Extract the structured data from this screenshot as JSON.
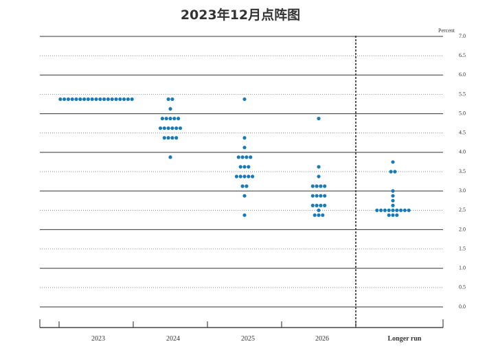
{
  "chart_data": {
    "type": "dot",
    "title": "2023年12月点阵图",
    "y_axis_label": "Percent",
    "categories": [
      "2023",
      "2024",
      "2025",
      "2026",
      "Longer run"
    ],
    "values": [
      [
        5.375,
        5.375,
        5.375,
        5.375,
        5.375,
        5.375,
        5.375,
        5.375,
        5.375,
        5.375,
        5.375,
        5.375,
        5.375,
        5.375,
        5.375,
        5.375,
        5.375,
        5.375,
        5.375
      ],
      [
        5.375,
        5.375,
        5.125,
        4.875,
        4.875,
        4.875,
        4.875,
        4.875,
        4.625,
        4.625,
        4.625,
        4.625,
        4.625,
        4.625,
        4.375,
        4.375,
        4.375,
        4.375,
        3.875
      ],
      [
        5.375,
        4.375,
        4.125,
        3.875,
        3.875,
        3.875,
        3.875,
        3.625,
        3.625,
        3.625,
        3.375,
        3.375,
        3.375,
        3.375,
        3.375,
        3.125,
        3.125,
        2.875,
        2.375
      ],
      [
        4.875,
        3.625,
        3.375,
        3.125,
        3.125,
        3.125,
        3.125,
        2.875,
        2.875,
        2.875,
        2.875,
        2.625,
        2.625,
        2.625,
        2.625,
        2.5,
        2.375,
        2.375,
        2.375
      ],
      [
        3.75,
        3.5,
        3.5,
        3.0,
        2.875,
        2.75,
        2.625,
        2.5,
        2.5,
        2.5,
        2.5,
        2.5,
        2.5,
        2.5,
        2.5,
        2.5,
        2.375,
        2.375,
        2.375
      ]
    ],
    "color": "#1a7ab5",
    "ylim": [
      0,
      7
    ],
    "yticks": [
      {
        "value": 0,
        "label": "0.0"
      },
      {
        "value": 0.5,
        "label": "0.5"
      },
      {
        "value": 1,
        "label": "1.0"
      },
      {
        "value": 1.5,
        "label": "1.5"
      },
      {
        "value": 2,
        "label": "2.0"
      },
      {
        "value": 2.5,
        "label": "2.5"
      },
      {
        "value": 3,
        "label": "3.0"
      },
      {
        "value": 3.5,
        "label": "3.5"
      },
      {
        "value": 4,
        "label": "4.0"
      },
      {
        "value": 4.5,
        "label": "4.5"
      },
      {
        "value": 5,
        "label": "5.0"
      },
      {
        "value": 5.5,
        "label": "5.5"
      },
      {
        "value": 6,
        "label": "6.0"
      },
      {
        "value": 6.5,
        "label": "6.5"
      },
      {
        "value": 7,
        "label": "7.0"
      }
    ],
    "grid": true
  }
}
